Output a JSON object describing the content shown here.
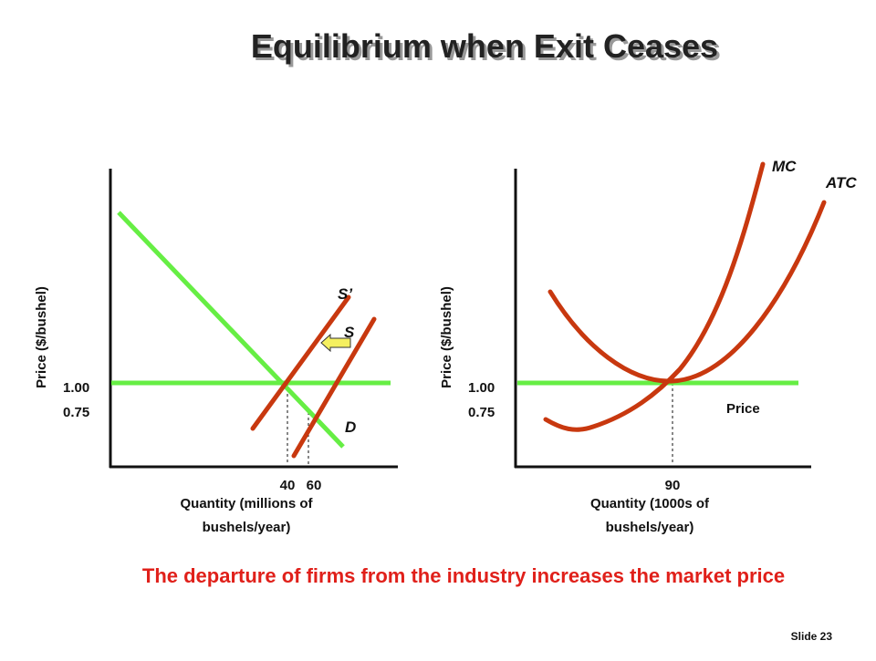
{
  "title": "Equilibrium when Exit Ceases",
  "market": {
    "y_axis_label": "Price ($/bushel)",
    "price_high": "1.00",
    "price_low": "0.75",
    "supply_new_label": "S’",
    "supply_label": "S",
    "demand_label": "D",
    "q_low": "40",
    "q_high": "60",
    "x_axis_label": [
      "Quantity (millions of",
      "bushels/year)"
    ]
  },
  "firm": {
    "mc_label": "MC",
    "atc_label": "ATC",
    "y_axis_label": "Price ($/bushel)",
    "price_high": "1.00",
    "price_low": "0.75",
    "price_line_label": "Price",
    "q": "90",
    "x_axis_label": [
      "Quantity (1000s of",
      "bushels/year)"
    ]
  },
  "caption": "The departure of firms from the industry increases the market price",
  "slide_number": "Slide 23"
}
